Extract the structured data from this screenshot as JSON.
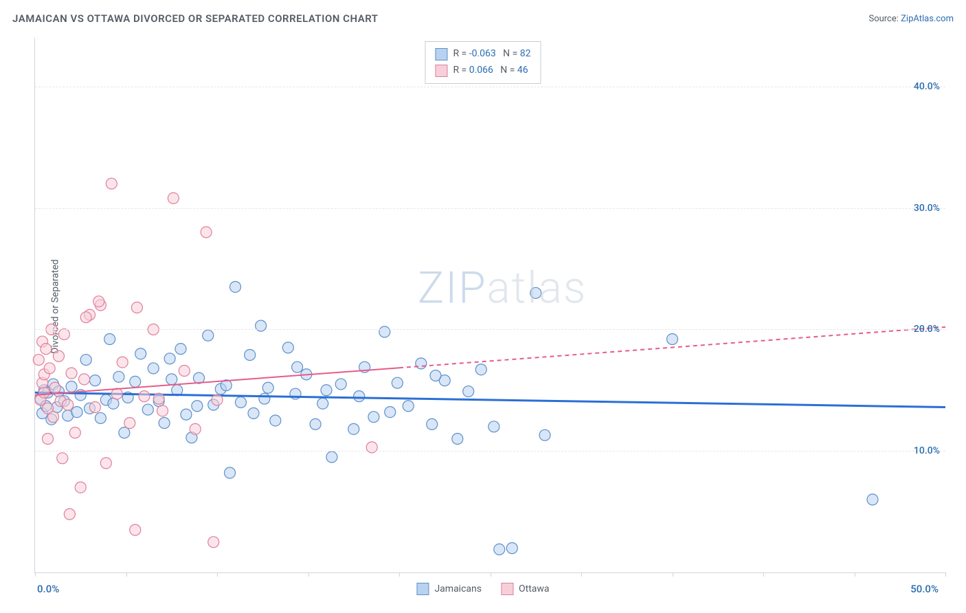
{
  "title": "JAMAICAN VS OTTAWA DIVORCED OR SEPARATED CORRELATION CHART",
  "source_label": "Source: ",
  "source_name": "ZipAtlas.com",
  "ylabel": "Divorced or Separated",
  "watermark": {
    "part1": "ZIP",
    "part2": "atlas",
    "color1": "#9cb7d9",
    "color2": "#c6d1dc"
  },
  "chart": {
    "type": "scatter",
    "xlim": [
      0,
      50
    ],
    "ylim": [
      0,
      44
    ],
    "xtick_positions": [
      0,
      5,
      10,
      15,
      20,
      25,
      30,
      35,
      40,
      45,
      50
    ],
    "ytick_labels": [
      {
        "pos": 10,
        "text": "10.0%"
      },
      {
        "pos": 20,
        "text": "20.0%"
      },
      {
        "pos": 30,
        "text": "30.0%"
      },
      {
        "pos": 40,
        "text": "40.0%"
      }
    ],
    "xlabel_start": "0.0%",
    "xlabel_end": "50.0%",
    "grid_color": "#e5e7eb",
    "axis_color": "#cfd4da",
    "tick_label_color": "#2b6cb0",
    "marker_radius": 8,
    "marker_stroke_width": 1.2,
    "series": [
      {
        "name": "Jamaicans",
        "fill": "#b8d2f0",
        "stroke": "#5d8fc9",
        "fill_opacity": 0.55,
        "trend": {
          "y_start": 14.8,
          "y_end": 13.6,
          "color": "#2a6fd6",
          "width": 3,
          "dashed_after_x": null
        },
        "points": [
          [
            0.3,
            14.3
          ],
          [
            0.4,
            13.1
          ],
          [
            0.5,
            15.0
          ],
          [
            0.6,
            13.7
          ],
          [
            0.7,
            14.8
          ],
          [
            0.9,
            12.6
          ],
          [
            1.0,
            15.5
          ],
          [
            1.2,
            13.6
          ],
          [
            1.3,
            14.9
          ],
          [
            1.6,
            14.1
          ],
          [
            1.8,
            12.9
          ],
          [
            2.0,
            15.3
          ],
          [
            2.3,
            13.2
          ],
          [
            2.5,
            14.6
          ],
          [
            2.8,
            17.5
          ],
          [
            3.0,
            13.5
          ],
          [
            3.3,
            15.8
          ],
          [
            3.6,
            12.7
          ],
          [
            3.9,
            14.2
          ],
          [
            4.1,
            19.2
          ],
          [
            4.3,
            13.9
          ],
          [
            4.6,
            16.1
          ],
          [
            4.9,
            11.5
          ],
          [
            5.1,
            14.4
          ],
          [
            5.5,
            15.7
          ],
          [
            5.8,
            18.0
          ],
          [
            6.2,
            13.4
          ],
          [
            6.5,
            16.8
          ],
          [
            6.8,
            14.1
          ],
          [
            7.1,
            12.3
          ],
          [
            7.4,
            17.6
          ],
          [
            7.8,
            15.0
          ],
          [
            8.0,
            18.4
          ],
          [
            8.3,
            13.0
          ],
          [
            8.6,
            11.1
          ],
          [
            9.0,
            16.0
          ],
          [
            9.5,
            19.5
          ],
          [
            9.8,
            13.8
          ],
          [
            10.2,
            15.1
          ],
          [
            10.7,
            8.2
          ],
          [
            11.0,
            23.5
          ],
          [
            11.3,
            14.0
          ],
          [
            11.8,
            17.9
          ],
          [
            12.0,
            13.1
          ],
          [
            12.4,
            20.3
          ],
          [
            12.8,
            15.2
          ],
          [
            13.2,
            12.5
          ],
          [
            13.9,
            18.5
          ],
          [
            14.3,
            14.7
          ],
          [
            14.9,
            16.3
          ],
          [
            15.4,
            12.2
          ],
          [
            15.8,
            13.9
          ],
          [
            16.3,
            9.5
          ],
          [
            16.8,
            15.5
          ],
          [
            17.5,
            11.8
          ],
          [
            18.1,
            16.9
          ],
          [
            18.6,
            12.8
          ],
          [
            19.2,
            19.8
          ],
          [
            19.9,
            15.6
          ],
          [
            20.5,
            13.7
          ],
          [
            21.2,
            17.2
          ],
          [
            21.8,
            12.2
          ],
          [
            22.5,
            15.8
          ],
          [
            23.2,
            11.0
          ],
          [
            23.8,
            14.9
          ],
          [
            24.5,
            16.7
          ],
          [
            25.2,
            12.0
          ],
          [
            27.5,
            23.0
          ],
          [
            28.0,
            11.3
          ],
          [
            25.5,
            1.9
          ],
          [
            26.2,
            2.0
          ],
          [
            35.0,
            19.2
          ],
          [
            46.0,
            6.0
          ],
          [
            22.0,
            16.2
          ],
          [
            19.5,
            13.2
          ],
          [
            17.8,
            14.5
          ],
          [
            16.0,
            15.0
          ],
          [
            14.4,
            16.9
          ],
          [
            12.6,
            14.3
          ],
          [
            10.5,
            15.4
          ],
          [
            8.9,
            13.7
          ],
          [
            7.5,
            15.9
          ]
        ]
      },
      {
        "name": "Ottawa",
        "fill": "#f7cfd8",
        "stroke": "#e07e9b",
        "fill_opacity": 0.55,
        "trend": {
          "y_start": 14.6,
          "y_end": 20.2,
          "color": "#e85a88",
          "width": 2,
          "dashed_after_x": 20
        },
        "points": [
          [
            0.2,
            17.5
          ],
          [
            0.3,
            14.2
          ],
          [
            0.4,
            19.0
          ],
          [
            0.4,
            15.6
          ],
          [
            0.5,
            14.8
          ],
          [
            0.5,
            16.3
          ],
          [
            0.6,
            18.4
          ],
          [
            0.7,
            13.5
          ],
          [
            0.8,
            16.8
          ],
          [
            0.9,
            20.0
          ],
          [
            1.0,
            12.8
          ],
          [
            1.1,
            15.2
          ],
          [
            1.3,
            17.8
          ],
          [
            1.4,
            14.1
          ],
          [
            1.6,
            19.6
          ],
          [
            1.8,
            13.8
          ],
          [
            2.0,
            16.4
          ],
          [
            2.2,
            11.5
          ],
          [
            2.5,
            7.0
          ],
          [
            2.7,
            15.9
          ],
          [
            3.0,
            21.2
          ],
          [
            3.3,
            13.6
          ],
          [
            3.6,
            22.0
          ],
          [
            3.9,
            9.0
          ],
          [
            4.2,
            32.0
          ],
          [
            4.5,
            14.7
          ],
          [
            4.8,
            17.3
          ],
          [
            5.2,
            12.3
          ],
          [
            5.6,
            21.8
          ],
          [
            6.0,
            14.5
          ],
          [
            6.5,
            20.0
          ],
          [
            7.0,
            13.3
          ],
          [
            7.6,
            30.8
          ],
          [
            8.2,
            16.6
          ],
          [
            8.8,
            11.8
          ],
          [
            9.4,
            28.0
          ],
          [
            10.0,
            14.2
          ],
          [
            5.5,
            3.5
          ],
          [
            1.9,
            4.8
          ],
          [
            9.8,
            2.5
          ],
          [
            18.5,
            10.3
          ],
          [
            2.8,
            21.0
          ],
          [
            3.5,
            22.3
          ],
          [
            1.5,
            9.4
          ],
          [
            0.7,
            11.0
          ],
          [
            6.8,
            14.3
          ]
        ]
      }
    ],
    "legend_top": [
      {
        "swatch_fill": "#b8d2f0",
        "swatch_stroke": "#5d8fc9",
        "r_label": "R = ",
        "r_val": "-0.063",
        "n_label": "N = ",
        "n_val": "82"
      },
      {
        "swatch_fill": "#f7cfd8",
        "swatch_stroke": "#e07e9b",
        "r_label": "R = ",
        "r_val": " 0.066",
        "n_label": "N = ",
        "n_val": "46"
      }
    ],
    "legend_bottom": [
      {
        "swatch_fill": "#b8d2f0",
        "swatch_stroke": "#5d8fc9",
        "label": "Jamaicans"
      },
      {
        "swatch_fill": "#f7cfd8",
        "swatch_stroke": "#e07e9b",
        "label": "Ottawa"
      }
    ]
  }
}
